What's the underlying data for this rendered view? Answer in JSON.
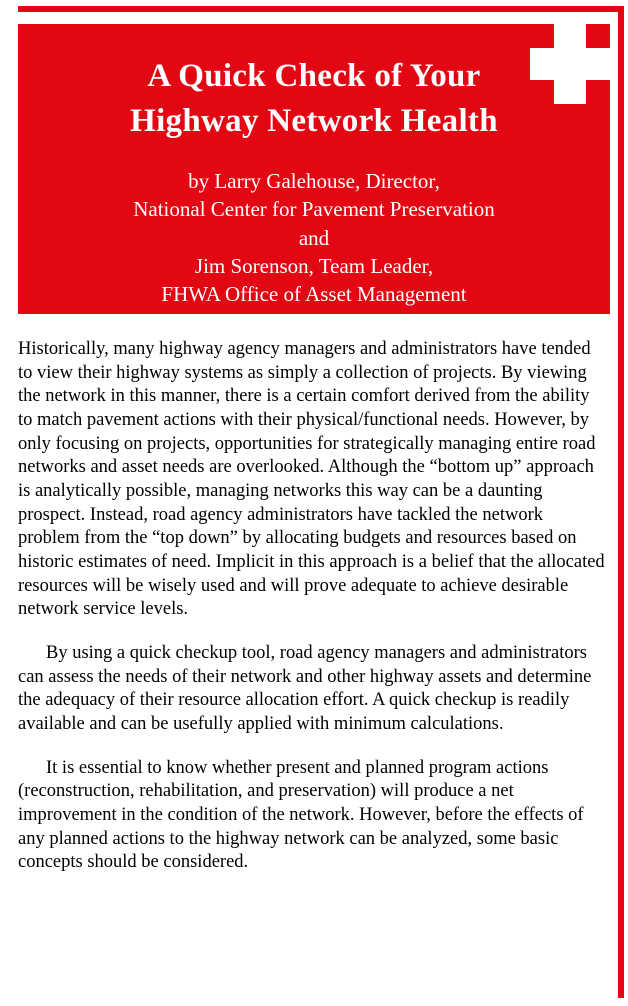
{
  "colors": {
    "red": "#e30613",
    "white": "#ffffff",
    "text": "#000000"
  },
  "typography": {
    "title_fontsize": 33,
    "title_weight": "bold",
    "byline_fontsize": 21,
    "body_fontsize": 18.5,
    "font_family": "Times New Roman"
  },
  "header": {
    "title_line1": "A Quick Check of Your",
    "title_line2": "Highway Network Health",
    "byline_line1": "by Larry Galehouse, Director,",
    "byline_line2": "National Center for Pavement Preservation",
    "byline_line3": "and",
    "byline_line4": "Jim Sorenson, Team Leader,",
    "byline_line5": "FHWA Office of Asset Management"
  },
  "body": {
    "p1": "Historically, many highway agency managers and administrators have tended to view their highway systems as simply a collection of projects. By viewing the network in this manner, there is a certain comfort derived from the ability to match pavement actions with their physical/functional needs. However, by only focusing on projects, opportunities for strategically managing entire road networks and asset needs are overlooked. Although the “bottom up” approach is analytically possible, managing networks this way can be a daunting prospect. Instead, road agency administrators have tackled the network problem from the “top down” by allocating budgets and resources based on historic estimates of need.  Implicit in this approach is a belief that the allocated resources will be wisely used and will prove adequate to achieve desirable network service levels.",
    "p2": "By using a quick checkup tool, road agency managers and administrators can assess the needs of their network and other highway assets and determine the adequacy of their resource allocation effort. A quick checkup is readily available and can be usefully applied with minimum calculations.",
    "p3": "It is essential to know whether present and planned program actions (reconstruction, rehabilitation, and preservation) will produce a net improvement in the condition of the network. However, before the effects of any planned actions to the highway network can be analyzed, some basic concepts should be considered."
  }
}
